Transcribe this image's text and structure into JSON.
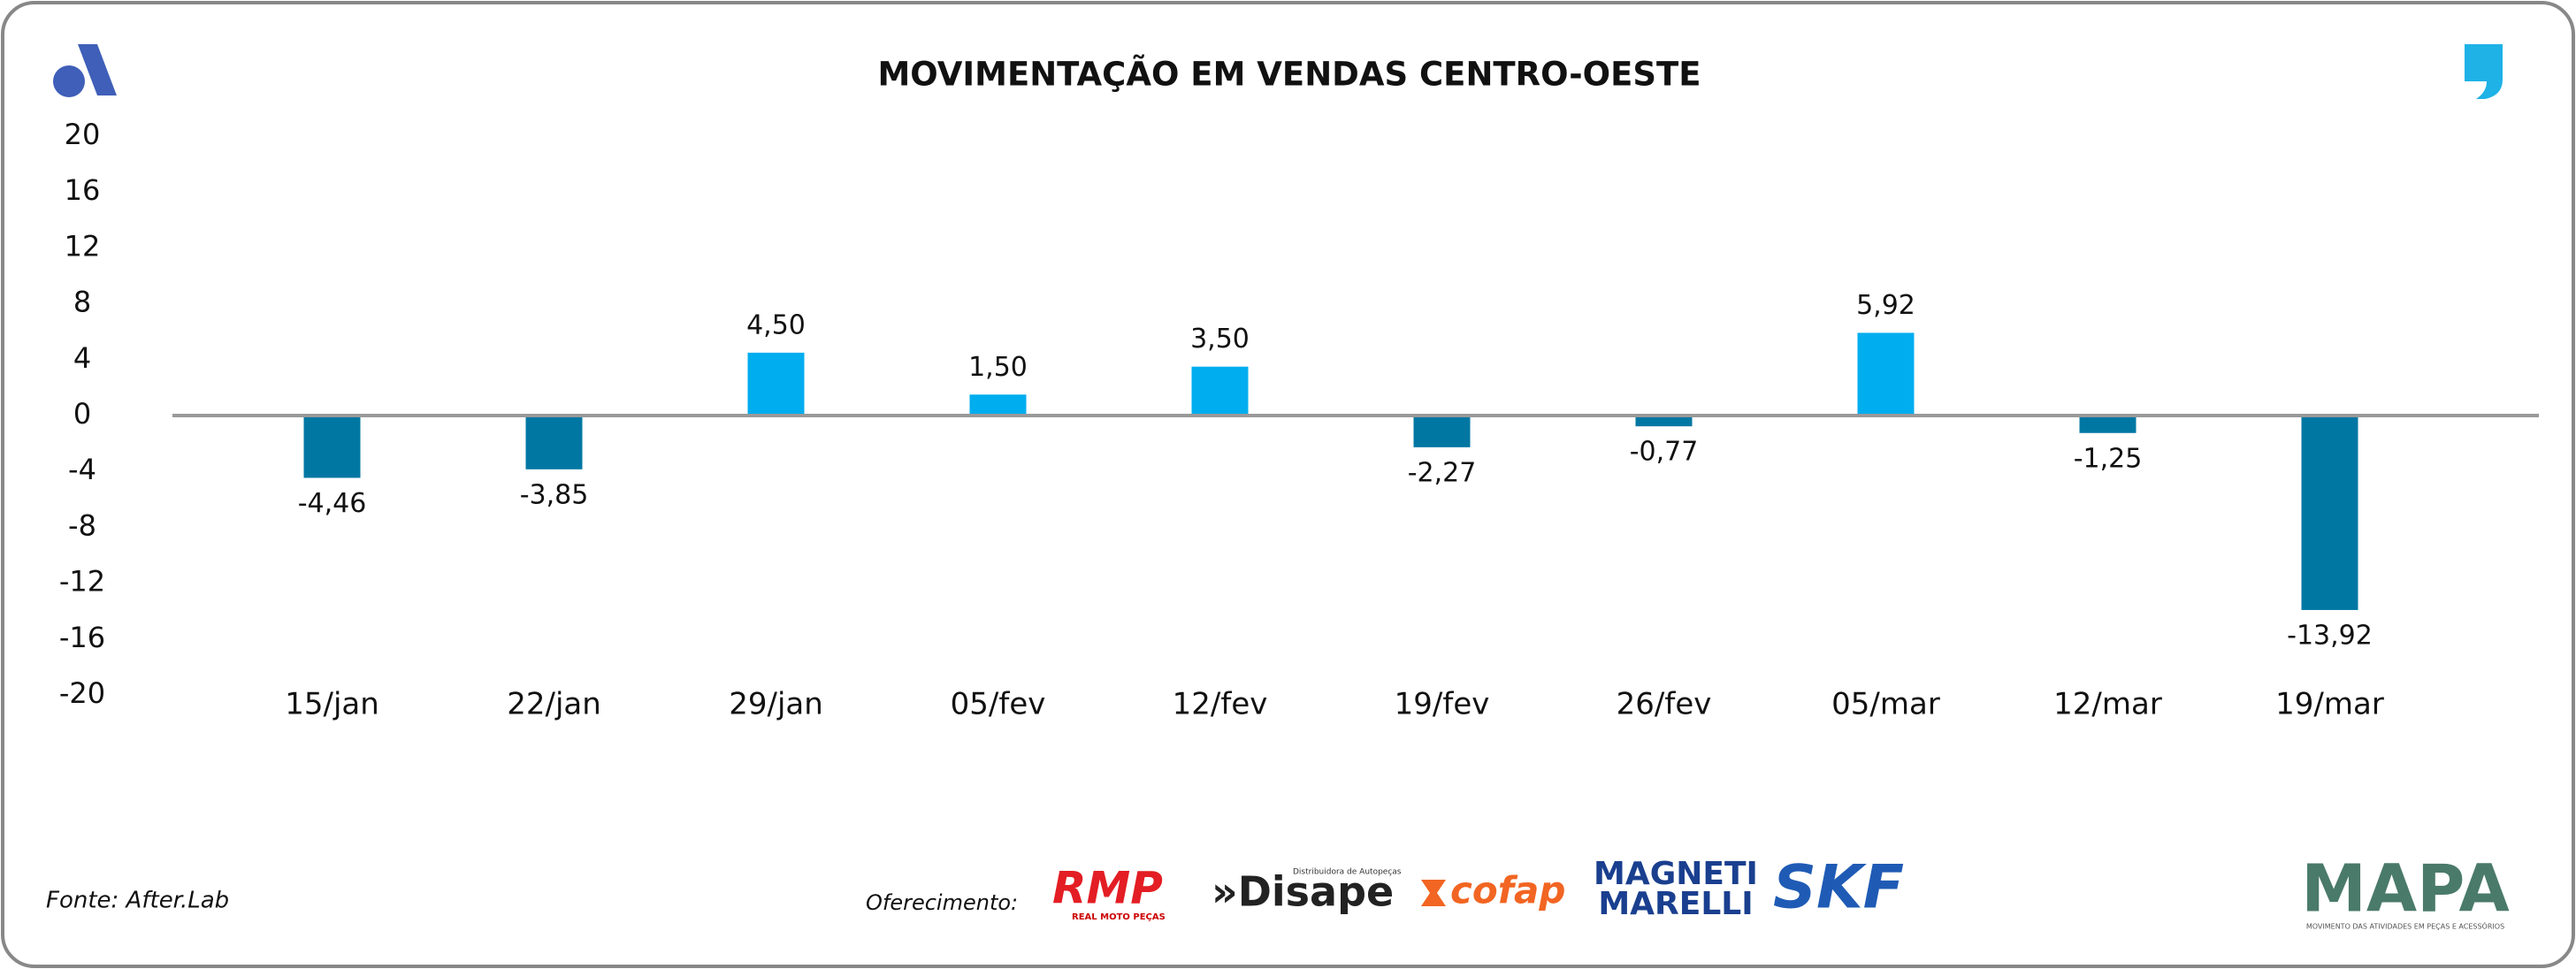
{
  "chart_data": {
    "type": "bar",
    "title": "MOVIMENTAÇÃO EM VENDAS CENTRO-OESTE",
    "categories": [
      "15/jan",
      "22/jan",
      "29/jan",
      "05/fev",
      "12/fev",
      "19/fev",
      "26/fev",
      "05/mar",
      "12/mar",
      "19/mar"
    ],
    "values": [
      -4.46,
      -3.85,
      4.5,
      1.5,
      3.5,
      -2.27,
      -0.77,
      5.92,
      -1.25,
      -13.92
    ],
    "value_labels": [
      "-4,46",
      "-3,85",
      "4,50",
      "1,50",
      "3,50",
      "-2,27",
      "-0,77",
      "5,92",
      "-1,25",
      "-13,92"
    ],
    "positive_color": "#00adef",
    "negative_color": "#0077a3",
    "ylim": [
      -20,
      20
    ],
    "yticks": [
      -20,
      -16,
      -12,
      -8,
      -4,
      0,
      4,
      8,
      12,
      16,
      20
    ],
    "grid": false
  },
  "footer": {
    "source": "Fonte: After.Lab",
    "sponsor_label": "Oferecimento:",
    "sponsors": [
      "RMP",
      "REAL MOTO PEÇAS",
      "Distribuidora de Autopeças",
      "»Disape",
      "cofap",
      "MAGNETI",
      "MARELLI",
      "SKF"
    ],
    "brand": "MAPA",
    "brand_subtitle": "MOVIMENTO DAS ATIVIDADES EM PEÇAS E ACESSÓRIOS"
  }
}
